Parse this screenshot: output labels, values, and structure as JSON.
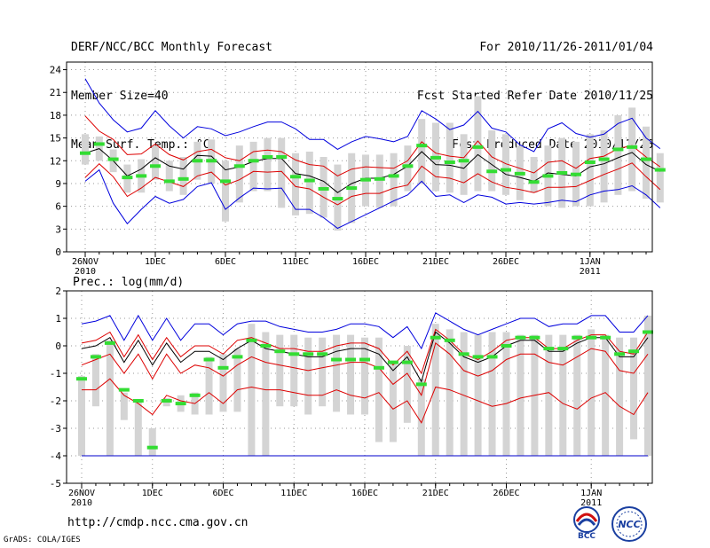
{
  "header": {
    "line1": "DERF/NCC/BCC Monthly Forecast",
    "line2": "Member Size=40",
    "line3": "Mean Surf. Temp.: °C",
    "right1": "For 2010/11/26-2011/01/04",
    "right2": "Fcst Started Refer Date 2010/11/25",
    "right3": "Fcst Produced Date 2010/11/26"
  },
  "footer": {
    "url": "http://cmdp.ncc.cma.gov.cn",
    "credit": "GrADS: COLA/IGES",
    "logo_bcc": "BCC",
    "logo_ncc": "NCC"
  },
  "chart_data": [
    {
      "type": "line",
      "title": "Mean Surf. Temp.: °C",
      "ylim": [
        0,
        25
      ],
      "yticks": [
        0,
        3,
        6,
        9,
        12,
        15,
        18,
        21,
        24
      ],
      "grid": true,
      "xticks": [
        {
          "day": 0,
          "label": "26NOV",
          "sub": "2010"
        },
        {
          "day": 5,
          "label": "1DEC"
        },
        {
          "day": 10,
          "label": "6DEC"
        },
        {
          "day": 15,
          "label": "11DEC"
        },
        {
          "day": 20,
          "label": "16DEC"
        },
        {
          "day": 25,
          "label": "21DEC"
        },
        {
          "day": 30,
          "label": "26DEC"
        },
        {
          "day": 36,
          "label": "1JAN",
          "sub": "2011"
        }
      ],
      "days": 40,
      "series": [
        {
          "name": "ensemble max",
          "color": "#0000dd",
          "values": [
            22.8,
            19.6,
            17.4,
            15.8,
            16.3,
            18.6,
            16.6,
            15.0,
            16.5,
            16.2,
            15.3,
            15.8,
            16.5,
            17.1,
            17.1,
            16.2,
            14.8,
            14.8,
            13.5,
            14.5,
            15.2,
            14.9,
            14.5,
            15.2,
            18.6,
            17.5,
            16.1,
            16.7,
            18.5,
            16.3,
            15.8,
            14.1,
            13.2,
            16.2,
            17.0,
            15.6,
            15.1,
            15.5,
            16.9,
            17.6,
            15.0,
            13.6
          ]
        },
        {
          "name": "upper spread",
          "color": "#dd0000",
          "values": [
            17.9,
            15.9,
            14.8,
            12.8,
            12.9,
            14.2,
            12.8,
            12.1,
            13.2,
            13.5,
            12.4,
            12.0,
            13.2,
            13.4,
            13.2,
            12.1,
            11.5,
            11.3,
            10.0,
            10.9,
            11.2,
            11.1,
            11.0,
            12.0,
            14.5,
            13.0,
            12.6,
            12.4,
            14.6,
            12.5,
            11.6,
            11.0,
            10.4,
            11.8,
            12.0,
            11.0,
            12.3,
            12.6,
            13.6,
            14.0,
            12.5,
            11.2
          ]
        },
        {
          "name": "ensemble mean",
          "color": "#000000",
          "values": [
            13.0,
            13.6,
            12.0,
            10.0,
            10.9,
            12.4,
            11.3,
            10.9,
            12.7,
            12.6,
            10.8,
            11.2,
            11.9,
            12.3,
            12.3,
            10.3,
            10.0,
            9.3,
            7.8,
            9.0,
            9.7,
            9.7,
            10.2,
            11.3,
            13.2,
            11.5,
            11.4,
            11.0,
            12.8,
            11.5,
            10.2,
            9.8,
            9.3,
            10.4,
            10.2,
            10.0,
            11.2,
            11.6,
            12.4,
            13.1,
            11.5,
            10.6
          ]
        },
        {
          "name": "lower spread",
          "color": "#dd0000",
          "values": [
            9.8,
            11.6,
            9.9,
            7.3,
            8.4,
            9.8,
            9.2,
            8.6,
            10.0,
            10.5,
            8.8,
            9.5,
            10.6,
            10.5,
            10.6,
            8.6,
            8.3,
            7.2,
            6.2,
            7.3,
            7.7,
            7.7,
            8.4,
            8.8,
            11.3,
            9.9,
            9.7,
            9.1,
            10.3,
            9.2,
            8.5,
            8.2,
            7.8,
            8.5,
            8.5,
            8.6,
            9.4,
            10.2,
            10.9,
            11.7,
            9.9,
            8.2
          ]
        },
        {
          "name": "ensemble min",
          "color": "#0000dd",
          "values": [
            9.3,
            10.8,
            6.4,
            3.7,
            5.6,
            7.3,
            6.4,
            6.9,
            8.6,
            9.1,
            5.6,
            7.1,
            8.4,
            8.3,
            8.4,
            5.6,
            5.6,
            4.5,
            3.1,
            4.0,
            4.9,
            5.8,
            6.7,
            7.5,
            9.3,
            7.3,
            7.5,
            6.5,
            7.5,
            7.2,
            6.3,
            6.5,
            6.3,
            6.5,
            6.8,
            6.6,
            7.5,
            8.0,
            8.2,
            8.7,
            7.5,
            5.8
          ]
        }
      ],
      "boxes_low": [
        11.5,
        12.0,
        10.5,
        7.8,
        7.8,
        9.5,
        8.0,
        7.5,
        9.5,
        9.0,
        4.0,
        6.5,
        8.0,
        8.0,
        5.8,
        4.8,
        5.0,
        4.5,
        2.8,
        3.8,
        6.0,
        5.8,
        6.0,
        8.0,
        9.0,
        8.0,
        7.8,
        7.5,
        8.0,
        8.0,
        7.5,
        6.8,
        7.8,
        6.0,
        5.8,
        6.0,
        6.0,
        6.5,
        7.5,
        8.0,
        7.0,
        6.5
      ],
      "boxes_high": [
        15.5,
        15.2,
        13.5,
        11.5,
        12.2,
        14.0,
        12.0,
        12.5,
        14.5,
        14.8,
        12.0,
        14.0,
        14.5,
        15.0,
        15.0,
        13.0,
        13.2,
        12.5,
        11.5,
        13.0,
        12.8,
        12.8,
        13.0,
        14.0,
        17.5,
        17.0,
        17.0,
        15.5,
        20.5,
        16.0,
        15.5,
        14.0,
        12.5,
        14.0,
        15.0,
        14.5,
        15.5,
        16.0,
        18.0,
        19.0,
        16.5,
        13.0
      ],
      "obs_marks": [
        13.0,
        14.2,
        12.2,
        9.8,
        10.0,
        11.3,
        9.3,
        9.6,
        12.0,
        12.0,
        9.3,
        11.3,
        12.0,
        12.5,
        12.5,
        9.9,
        9.4,
        8.3,
        7.0,
        8.4,
        9.5,
        9.6,
        10.0,
        11.3,
        14.0,
        12.4,
        11.8,
        12.0,
        13.8,
        10.6,
        10.8,
        10.3,
        9.2,
        10.0,
        10.4,
        10.2,
        11.8,
        12.2,
        13.5,
        13.8,
        12.2,
        10.8
      ]
    },
    {
      "type": "line",
      "title": "Prec.: log(mm/d)",
      "ylim": [
        -5,
        2
      ],
      "yticks": [
        -5,
        -4,
        -3,
        -2,
        -1,
        0,
        1,
        2
      ],
      "grid": true,
      "xticks": [
        {
          "day": 0,
          "label": "26NOV",
          "sub": "2010"
        },
        {
          "day": 5,
          "label": "1DEC"
        },
        {
          "day": 10,
          "label": "6DEC"
        },
        {
          "day": 15,
          "label": "11DEC"
        },
        {
          "day": 20,
          "label": "16DEC"
        },
        {
          "day": 25,
          "label": "21DEC"
        },
        {
          "day": 30,
          "label": "26DEC"
        },
        {
          "day": 36,
          "label": "1JAN",
          "sub": "2011"
        }
      ],
      "days": 40,
      "series": [
        {
          "name": "ensemble max",
          "color": "#0000dd",
          "values": [
            0.8,
            0.9,
            1.1,
            0.2,
            1.1,
            0.2,
            1.0,
            0.2,
            0.8,
            0.8,
            0.4,
            0.8,
            0.9,
            0.9,
            0.7,
            0.6,
            0.5,
            0.5,
            0.6,
            0.8,
            0.8,
            0.7,
            0.3,
            0.7,
            -0.1,
            1.2,
            0.9,
            0.6,
            0.4,
            0.6,
            0.8,
            1.0,
            1.0,
            0.7,
            0.8,
            0.8,
            1.1,
            1.1,
            0.5,
            0.5,
            1.1
          ]
        },
        {
          "name": "upper spread",
          "color": "#dd0000",
          "values": [
            0.1,
            0.2,
            0.5,
            -0.4,
            0.4,
            -0.5,
            0.3,
            -0.4,
            0.0,
            0.0,
            -0.3,
            0.2,
            0.3,
            0.1,
            -0.1,
            -0.1,
            -0.2,
            -0.2,
            0.0,
            0.1,
            0.1,
            -0.1,
            -0.7,
            -0.2,
            -1.0,
            0.6,
            0.2,
            -0.3,
            -0.5,
            -0.2,
            0.2,
            0.3,
            0.3,
            -0.1,
            -0.1,
            0.2,
            0.4,
            0.4,
            -0.2,
            -0.3,
            0.5
          ]
        },
        {
          "name": "ensemble mean",
          "color": "#000000",
          "values": [
            -0.1,
            0.0,
            0.3,
            -0.6,
            0.2,
            -0.7,
            0.1,
            -0.6,
            -0.2,
            -0.2,
            -0.5,
            -0.1,
            0.2,
            -0.1,
            -0.2,
            -0.3,
            -0.4,
            -0.4,
            -0.2,
            -0.1,
            -0.1,
            -0.3,
            -0.9,
            -0.4,
            -1.3,
            0.5,
            0.1,
            -0.4,
            -0.6,
            -0.4,
            0.0,
            0.2,
            0.2,
            -0.2,
            -0.2,
            0.1,
            0.3,
            0.3,
            -0.4,
            -0.4,
            0.3
          ]
        },
        {
          "name": "lower spread",
          "color": "#dd0000",
          "values": [
            -0.7,
            -0.5,
            -0.3,
            -1.0,
            -0.3,
            -1.2,
            -0.3,
            -1.0,
            -0.7,
            -0.8,
            -1.1,
            -0.7,
            -0.4,
            -0.6,
            -0.7,
            -0.8,
            -0.9,
            -0.8,
            -0.7,
            -0.6,
            -0.6,
            -0.8,
            -1.4,
            -1.0,
            -1.8,
            0.1,
            -0.3,
            -0.9,
            -1.1,
            -0.9,
            -0.5,
            -0.3,
            -0.3,
            -0.6,
            -0.7,
            -0.4,
            -0.1,
            -0.2,
            -0.9,
            -1.0,
            -0.3
          ]
        },
        {
          "name": "ensemble min",
          "color": "#dd0000",
          "values": [
            -1.6,
            -1.6,
            -1.2,
            -1.8,
            -2.1,
            -2.5,
            -1.8,
            -2.0,
            -2.1,
            -1.7,
            -2.1,
            -1.6,
            -1.5,
            -1.6,
            -1.6,
            -1.7,
            -1.8,
            -1.8,
            -1.6,
            -1.8,
            -1.9,
            -1.7,
            -2.3,
            -2.0,
            -2.8,
            -1.5,
            -1.6,
            -1.8,
            -2.0,
            -2.2,
            -2.1,
            -1.9,
            -1.8,
            -1.7,
            -2.1,
            -2.3,
            -1.9,
            -1.7,
            -2.2,
            -2.5,
            -1.7
          ]
        }
      ],
      "floor": -4,
      "boxes_low": [
        -4.0,
        -2.2,
        -4.0,
        -2.7,
        -4.0,
        -4.0,
        -2.2,
        -2.4,
        -2.5,
        -2.5,
        -2.4,
        -2.4,
        -4.0,
        -4.0,
        -2.2,
        -2.2,
        -2.5,
        -2.2,
        -2.4,
        -2.5,
        -2.5,
        -3.5,
        -3.5,
        -2.8,
        -4.0,
        -4.0,
        -4.0,
        -4.0,
        -4.0,
        -4.0,
        -4.0,
        -4.0,
        -4.0,
        -4.0,
        -4.0,
        -4.0,
        -4.0,
        -4.0,
        -4.0,
        -3.4,
        -4.0
      ],
      "boxes_high": [
        -1.1,
        -0.3,
        0.2,
        -1.7,
        -2.0,
        -3.0,
        -1.9,
        -1.8,
        -1.7,
        -0.4,
        -0.3,
        -0.1,
        0.8,
        0.5,
        0.4,
        0.4,
        0.3,
        0.3,
        0.4,
        0.4,
        0.3,
        0.3,
        -0.6,
        0.0,
        -1.2,
        0.8,
        0.6,
        0.5,
        0.4,
        0.5,
        0.5,
        0.4,
        0.4,
        0.4,
        0.4,
        0.4,
        0.6,
        0.4,
        0.3,
        0.3,
        1.1
      ],
      "obs_marks": [
        -1.2,
        -0.4,
        0.1,
        -1.6,
        -2.0,
        -3.7,
        -2.0,
        -2.1,
        -1.8,
        -0.5,
        -0.8,
        -0.4,
        0.2,
        0.0,
        -0.2,
        -0.3,
        -0.3,
        -0.3,
        -0.5,
        -0.5,
        -0.5,
        -0.8,
        -0.6,
        -0.6,
        -1.4,
        0.3,
        0.2,
        -0.3,
        -0.4,
        -0.4,
        0.0,
        0.3,
        0.3,
        -0.1,
        -0.1,
        0.3,
        0.3,
        0.3,
        -0.3,
        -0.2,
        0.5
      ]
    }
  ]
}
